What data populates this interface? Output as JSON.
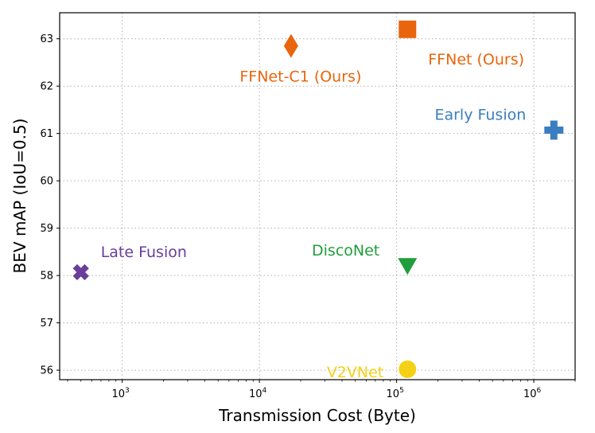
{
  "chart_data": {
    "type": "scatter",
    "xlabel": "Transmission Cost (Byte)",
    "ylabel": "BEV mAP (IoU=0.5)",
    "xscale": "log",
    "xlim": [
      350,
      2000000
    ],
    "ylim": [
      55.8,
      63.55
    ],
    "grid": true,
    "x_ticks": [
      {
        "value": 1000,
        "base": "10",
        "exp": "3"
      },
      {
        "value": 10000,
        "base": "10",
        "exp": "4"
      },
      {
        "value": 100000,
        "base": "10",
        "exp": "5"
      },
      {
        "value": 1000000,
        "base": "10",
        "exp": "6"
      }
    ],
    "y_ticks": [
      {
        "value": 56,
        "label": "56"
      },
      {
        "value": 57,
        "label": "57"
      },
      {
        "value": 58,
        "label": "58"
      },
      {
        "value": 59,
        "label": "59"
      },
      {
        "value": 60,
        "label": "60"
      },
      {
        "value": 61,
        "label": "61"
      },
      {
        "value": 62,
        "label": "62"
      },
      {
        "value": 63,
        "label": "63"
      }
    ],
    "points": [
      {
        "id": "ffnet",
        "label": "FFNet (Ours)",
        "x": 120000,
        "y": 63.2,
        "marker": "square",
        "color": "#e8650d",
        "label_anchor": "start",
        "label_pos": "below-right"
      },
      {
        "id": "ffnet-c1",
        "label": "FFNet-C1 (Ours)",
        "x": 17000,
        "y": 62.85,
        "marker": "diamond",
        "color": "#e8650d",
        "label_anchor": "middle",
        "label_pos": "below"
      },
      {
        "id": "early-fusion",
        "label": "Early Fusion",
        "x": 1400000,
        "y": 61.07,
        "marker": "plus",
        "color": "#3a7ebf",
        "label_anchor": "end",
        "label_pos": "above-left"
      },
      {
        "id": "late-fusion",
        "label": "Late Fusion",
        "x": 500,
        "y": 58.07,
        "marker": "x",
        "color": "#6a3d9a",
        "label_anchor": "start",
        "label_pos": "above-right"
      },
      {
        "id": "disconet",
        "label": "DiscoNet",
        "x": 120000,
        "y": 58.2,
        "marker": "triangle-down",
        "color": "#1f9e3b",
        "label_anchor": "end",
        "label_pos": "above-left"
      },
      {
        "id": "v2vnet",
        "label": "V2VNet",
        "x": 120000,
        "y": 56.02,
        "marker": "circle",
        "color": "#f5d115",
        "label_anchor": "end",
        "label_pos": "left"
      }
    ]
  }
}
